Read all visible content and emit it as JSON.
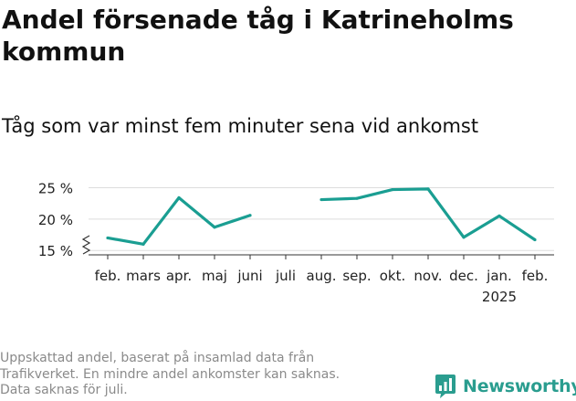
{
  "title": "Andel försenade tåg i Katrineholms kommun",
  "subtitle": "Tåg som var minst fem minuter sena vid ankomst",
  "footer": {
    "lines": [
      "Uppskattad andel, baserat på insamlad data från",
      "Trafikverket. En mindre andel ankomster kan saknas.",
      "Data saknas för juli."
    ]
  },
  "brand": {
    "name": "Newsworthy",
    "icon": "newsworthy-logo-icon",
    "color": "#2a9d8f"
  },
  "chart_data": {
    "type": "line",
    "categories": [
      "feb.",
      "mars",
      "apr.",
      "maj",
      "juni",
      "juli",
      "aug.",
      "sep.",
      "okt.",
      "nov.",
      "dec.",
      "jan.",
      "feb."
    ],
    "category_sublabels": [
      "",
      "",
      "",
      "",
      "",
      "",
      "",
      "",
      "",
      "",
      "",
      "2025",
      ""
    ],
    "series": [
      {
        "values": [
          17.0,
          16.0,
          23.4,
          18.7,
          20.6,
          null,
          23.1,
          23.3,
          24.7,
          24.8,
          17.1,
          20.5,
          16.7
        ],
        "color": "#1a9e92"
      }
    ],
    "yticks": [
      15,
      20,
      25
    ],
    "ytick_labels": [
      "15 %",
      "20 %",
      "25 %"
    ],
    "ylim": [
      14.3,
      25.8
    ],
    "y_axis_break": true,
    "grid": true,
    "legend": "none",
    "xlabel": "",
    "ylabel": ""
  }
}
